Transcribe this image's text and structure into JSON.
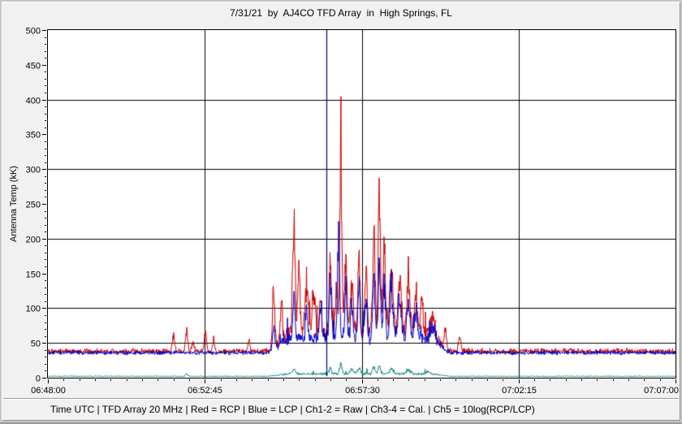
{
  "window": {
    "status_bar": "Time UTC | TFD Array 20 MHz | Red = RCP | Blue = LCP | Ch1-2 = Raw | Ch3-4 = Cal. | Ch5 = 10log(RCP/LCP)"
  },
  "chart_data": {
    "type": "line",
    "title": "7/31/21  by  AJ4CO TFD Array  in  High Springs, FL",
    "xlabel": "Time UTC",
    "ylabel": "Antenna Temp (kK)",
    "ylim": [
      0,
      500
    ],
    "x_ticks": [
      "06:48:00",
      "06:52:45",
      "06:57:30",
      "07:02:15",
      "07:07:00"
    ],
    "y_ticks": [
      500,
      450,
      400,
      350,
      300,
      250,
      200,
      150,
      100,
      50,
      0
    ],
    "y_minor_step": 10,
    "x_minor_per_major": 10,
    "h_gridlines": [
      50,
      100,
      200,
      300,
      400
    ],
    "v_gridlines": [
      "06:52:45",
      "06:57:30",
      "07:02:15"
    ],
    "plot_bg": "#ffffff",
    "grid_color": "#000000",
    "spike_format": "[seconds_after_06:48:00, peak_kK_above_baseline, width_seconds]",
    "storm": {
      "start_offset": 395,
      "end_offset": 735,
      "ramp": 45
    },
    "event_line": {
      "time": "06:56:26",
      "color": "#00008b",
      "top_value": 500,
      "bottom_value": 2
    },
    "series": [
      {
        "name": "RCP (Red, Ch1-2 Raw)",
        "color": "#cc0000",
        "baseline": 38,
        "noise": 5.0,
        "storm_lift": 16,
        "storm_rand": 20,
        "burst_prob": 0.1,
        "burst_max": 40,
        "spikes": [
          [
            228,
            22,
            2
          ],
          [
            252,
            30,
            2
          ],
          [
            263,
            16,
            2
          ],
          [
            286,
            28,
            2
          ],
          [
            301,
            15,
            2
          ],
          [
            365,
            14,
            2
          ],
          [
            410,
            88,
            2
          ],
          [
            424,
            44,
            2
          ],
          [
            447,
            175,
            2
          ],
          [
            456,
            95,
            2
          ],
          [
            470,
            60,
            3
          ],
          [
            483,
            48,
            3
          ],
          [
            495,
            52,
            2
          ],
          [
            513,
            128,
            2
          ],
          [
            524,
            66,
            2
          ],
          [
            532,
            270,
            2
          ],
          [
            541,
            102,
            2
          ],
          [
            552,
            68,
            3
          ],
          [
            565,
            110,
            2
          ],
          [
            578,
            92,
            2
          ],
          [
            592,
            148,
            2
          ],
          [
            602,
            200,
            2
          ],
          [
            611,
            122,
            2
          ],
          [
            624,
            102,
            3
          ],
          [
            639,
            78,
            3
          ],
          [
            655,
            70,
            3
          ],
          [
            668,
            52,
            3
          ],
          [
            679,
            56,
            2
          ],
          [
            700,
            33,
            3
          ],
          [
            722,
            26,
            2
          ],
          [
            748,
            20,
            2
          ]
        ]
      },
      {
        "name": "LCP (Blue)",
        "color": "#0000c8",
        "baseline": 36,
        "noise": 3.6,
        "storm_lift": 13,
        "storm_rand": 16,
        "burst_prob": 0.08,
        "burst_max": 28,
        "spikes": [
          [
            410,
            33,
            2
          ],
          [
            447,
            62,
            2
          ],
          [
            470,
            38,
            2
          ],
          [
            495,
            42,
            2
          ],
          [
            513,
            82,
            2
          ],
          [
            528,
            130,
            2
          ],
          [
            541,
            72,
            2
          ],
          [
            552,
            52,
            2
          ],
          [
            565,
            85,
            2
          ],
          [
            578,
            62,
            2
          ],
          [
            592,
            88,
            2
          ],
          [
            602,
            105,
            2
          ],
          [
            611,
            75,
            2
          ],
          [
            624,
            62,
            3
          ],
          [
            639,
            52,
            3
          ],
          [
            655,
            43,
            3
          ],
          [
            668,
            32,
            3
          ],
          [
            700,
            20,
            3
          ]
        ]
      },
      {
        "name": "Ch5 = 10log(RCP/LCP)",
        "color": "#008080",
        "baseline": 2,
        "noise": 0.8,
        "storm_lift": 2,
        "storm_rand": 3,
        "burst_prob": 0.03,
        "burst_max": 6,
        "spikes": [
          [
            252,
            3,
            2
          ],
          [
            447,
            6,
            3
          ],
          [
            513,
            9,
            2
          ],
          [
            532,
            15,
            2
          ],
          [
            552,
            7,
            3
          ],
          [
            565,
            8,
            3
          ],
          [
            592,
            10,
            2
          ],
          [
            602,
            12,
            2
          ],
          [
            624,
            7,
            3
          ],
          [
            655,
            5,
            4
          ],
          [
            690,
            3,
            4
          ]
        ]
      }
    ]
  }
}
